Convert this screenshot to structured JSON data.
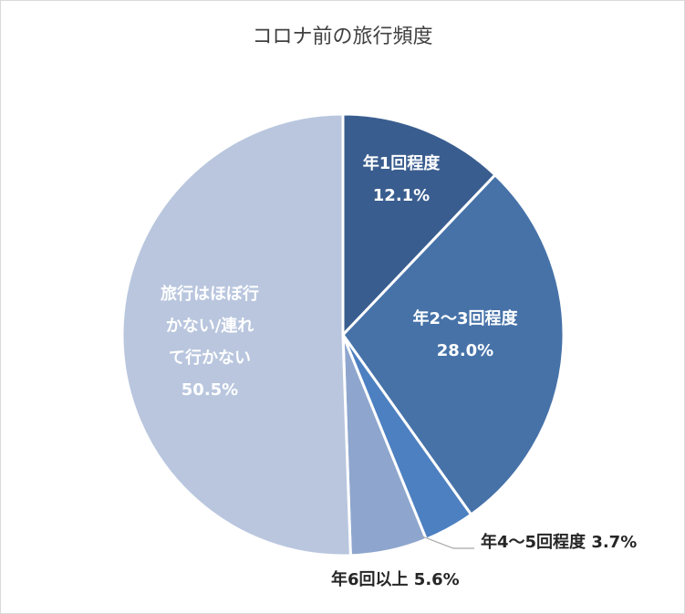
{
  "chart_data": {
    "type": "pie",
    "title": "コロナ前の旅行頻度",
    "slices": [
      {
        "label": "年1回程度",
        "value": 12.1,
        "value_label": "12.1%",
        "color": "#3a5d8f",
        "label_position": "inside"
      },
      {
        "label": "年2〜3回程度",
        "value": 28.0,
        "value_label": "28.0%",
        "color": "#4672a8",
        "label_position": "inside"
      },
      {
        "label": "年4〜5回程度",
        "value": 3.7,
        "value_label": "3.7%",
        "color": "#4d80c1",
        "label_position": "outside"
      },
      {
        "label": "年6回以上",
        "value": 5.6,
        "value_label": "5.6%",
        "color": "#8ea6cd",
        "label_position": "outside"
      },
      {
        "label_lines": [
          "旅行はほぼ行",
          "かない/連れ",
          "て行かない"
        ],
        "value": 50.5,
        "value_label": "50.5%",
        "color": "#b9c6de",
        "label_position": "inside"
      }
    ],
    "start_angle": "12 o'clock",
    "direction": "clockwise",
    "legend": "none"
  }
}
